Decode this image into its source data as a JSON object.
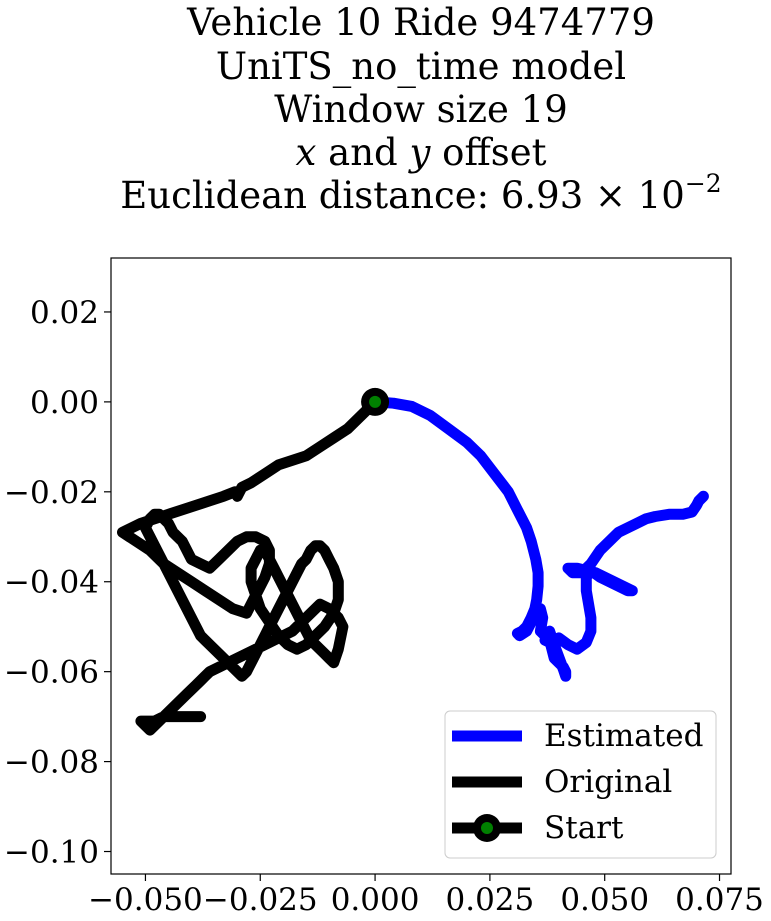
{
  "chart_data": {
    "type": "line",
    "title": [
      "Vehicle 10 Ride 9474779",
      "UniTS_no_time model",
      "Window size 19",
      "x and y offset",
      "Euclidean distance: 6.93 × 10⁻²"
    ],
    "title_parts": {
      "offset_x": "x",
      "offset_and": " and ",
      "offset_y": "y",
      "offset_rest": " offset",
      "dist_prefix": "Euclidean distance: 6.93 × 10",
      "dist_exp": "−2"
    },
    "xlabel": "",
    "ylabel": "",
    "xlim": [
      -0.0575,
      0.0775
    ],
    "ylim": [
      -0.105,
      0.032
    ],
    "xticks": [
      -0.05,
      -0.025,
      0.0,
      0.025,
      0.05,
      0.075
    ],
    "xtick_labels": [
      "−0.050",
      "−0.025",
      "0.000",
      "0.025",
      "0.050",
      "0.075"
    ],
    "yticks": [
      0.02,
      0.0,
      -0.02,
      -0.04,
      -0.06,
      -0.08,
      -0.1
    ],
    "ytick_labels": [
      "0.02",
      "0.00",
      "−0.02",
      "−0.04",
      "−0.06",
      "−0.08",
      "−0.10"
    ],
    "grid": false,
    "legend_position": "lower-right",
    "series": [
      {
        "name": "Estimated",
        "color": "#0000ff",
        "x": [
          0.0,
          0.004,
          0.008,
          0.012,
          0.016,
          0.02,
          0.023,
          0.026,
          0.029,
          0.031,
          0.033,
          0.034,
          0.035,
          0.0355,
          0.0355,
          0.0352,
          0.0348,
          0.034,
          0.0335,
          0.033,
          0.032,
          0.031,
          0.0315,
          0.033,
          0.034,
          0.035,
          0.036,
          0.0365,
          0.036,
          0.037,
          0.038,
          0.0385,
          0.039,
          0.04,
          0.041,
          0.0415,
          0.0415,
          0.041,
          0.039,
          0.038,
          0.037,
          0.038,
          0.04,
          0.042,
          0.044,
          0.046,
          0.047,
          0.047,
          0.0465,
          0.046,
          0.046,
          0.047,
          0.049,
          0.051,
          0.053,
          0.055,
          0.056,
          0.054,
          0.052,
          0.05,
          0.048,
          0.046,
          0.044,
          0.042,
          0.043,
          0.045,
          0.047,
          0.049,
          0.051,
          0.053,
          0.055,
          0.057,
          0.059,
          0.061,
          0.064,
          0.067,
          0.069,
          0.07,
          0.0705,
          0.0715
        ],
        "y": [
          0.0,
          -0.0003,
          -0.001,
          -0.003,
          -0.006,
          -0.009,
          -0.012,
          -0.016,
          -0.02,
          -0.024,
          -0.028,
          -0.031,
          -0.035,
          -0.038,
          -0.041,
          -0.044,
          -0.046,
          -0.048,
          -0.049,
          -0.05,
          -0.051,
          -0.0515,
          -0.052,
          -0.051,
          -0.049,
          -0.047,
          -0.046,
          -0.048,
          -0.051,
          -0.052,
          -0.053,
          -0.055,
          -0.057,
          -0.058,
          -0.059,
          -0.06,
          -0.061,
          -0.0595,
          -0.054,
          -0.051,
          -0.053,
          -0.0535,
          -0.0525,
          -0.054,
          -0.055,
          -0.0535,
          -0.051,
          -0.048,
          -0.045,
          -0.042,
          -0.039,
          -0.0375,
          -0.039,
          -0.04,
          -0.041,
          -0.042,
          -0.042,
          -0.041,
          -0.04,
          -0.039,
          -0.038,
          -0.0375,
          -0.037,
          -0.037,
          -0.038,
          -0.038,
          -0.036,
          -0.033,
          -0.031,
          -0.029,
          -0.028,
          -0.027,
          -0.026,
          -0.0255,
          -0.025,
          -0.025,
          -0.0245,
          -0.023,
          -0.022,
          -0.021
        ]
      },
      {
        "name": "Original",
        "color": "#000000",
        "x": [
          0.0,
          -0.002,
          -0.004,
          -0.006,
          -0.009,
          -0.012,
          -0.015,
          -0.018,
          -0.021,
          -0.024,
          -0.027,
          -0.029,
          -0.03,
          -0.0305,
          -0.033,
          -0.036,
          -0.039,
          -0.042,
          -0.045,
          -0.048,
          -0.051,
          -0.053,
          -0.055,
          -0.052,
          -0.049,
          -0.046,
          -0.043,
          -0.04,
          -0.037,
          -0.034,
          -0.031,
          -0.028,
          -0.026,
          -0.024,
          -0.023,
          -0.023,
          -0.024,
          -0.026,
          -0.028,
          -0.03,
          -0.032,
          -0.034,
          -0.036,
          -0.038,
          -0.04,
          -0.041,
          -0.042,
          -0.043,
          -0.044,
          -0.045,
          -0.046,
          -0.047,
          -0.048,
          -0.049,
          -0.05,
          -0.049,
          -0.048,
          -0.047,
          -0.046,
          -0.045,
          -0.044,
          -0.043,
          -0.042,
          -0.041,
          -0.04,
          -0.039,
          -0.038,
          -0.037,
          -0.036,
          -0.035,
          -0.034,
          -0.033,
          -0.032,
          -0.031,
          -0.03,
          -0.029,
          -0.028,
          -0.027,
          -0.026,
          -0.025,
          -0.024,
          -0.023,
          -0.022,
          -0.021,
          -0.02,
          -0.019,
          -0.018,
          -0.017,
          -0.016,
          -0.015,
          -0.014,
          -0.013,
          -0.012,
          -0.011,
          -0.01,
          -0.009,
          -0.008,
          -0.008,
          -0.009,
          -0.011,
          -0.013,
          -0.015,
          -0.017,
          -0.019,
          -0.021,
          -0.023,
          -0.025,
          -0.026,
          -0.027,
          -0.027,
          -0.026,
          -0.025,
          -0.024,
          -0.023,
          -0.022,
          -0.021,
          -0.02,
          -0.019,
          -0.018,
          -0.017,
          -0.016,
          -0.015,
          -0.014,
          -0.013,
          -0.012,
          -0.011,
          -0.01,
          -0.009,
          -0.008,
          -0.007,
          -0.008,
          -0.01,
          -0.012,
          -0.014,
          -0.016,
          -0.018,
          -0.02,
          -0.022,
          -0.024,
          -0.026,
          -0.028,
          -0.03,
          -0.032,
          -0.034,
          -0.036,
          -0.037,
          -0.038,
          -0.039,
          -0.04,
          -0.041,
          -0.042,
          -0.043,
          -0.044,
          -0.045,
          -0.046,
          -0.047,
          -0.048,
          -0.049,
          -0.05,
          -0.051,
          -0.05,
          -0.048,
          -0.046,
          -0.044,
          -0.042,
          -0.04,
          -0.038
        ],
        "y": [
          0.0,
          -0.002,
          -0.004,
          -0.006,
          -0.008,
          -0.01,
          -0.012,
          -0.013,
          -0.014,
          -0.016,
          -0.018,
          -0.019,
          -0.021,
          -0.02,
          -0.021,
          -0.022,
          -0.023,
          -0.024,
          -0.025,
          -0.026,
          -0.027,
          -0.028,
          -0.029,
          -0.031,
          -0.033,
          -0.036,
          -0.038,
          -0.04,
          -0.042,
          -0.044,
          -0.046,
          -0.047,
          -0.043,
          -0.039,
          -0.036,
          -0.033,
          -0.031,
          -0.03,
          -0.03,
          -0.031,
          -0.033,
          -0.035,
          -0.037,
          -0.036,
          -0.035,
          -0.033,
          -0.031,
          -0.03,
          -0.029,
          -0.027,
          -0.026,
          -0.025,
          -0.025,
          -0.026,
          -0.028,
          -0.03,
          -0.032,
          -0.034,
          -0.036,
          -0.038,
          -0.04,
          -0.042,
          -0.044,
          -0.046,
          -0.048,
          -0.05,
          -0.052,
          -0.053,
          -0.054,
          -0.055,
          -0.056,
          -0.057,
          -0.058,
          -0.059,
          -0.06,
          -0.061,
          -0.06,
          -0.058,
          -0.056,
          -0.054,
          -0.052,
          -0.05,
          -0.048,
          -0.046,
          -0.044,
          -0.042,
          -0.04,
          -0.038,
          -0.036,
          -0.035,
          -0.033,
          -0.032,
          -0.032,
          -0.033,
          -0.035,
          -0.037,
          -0.04,
          -0.044,
          -0.047,
          -0.05,
          -0.052,
          -0.054,
          -0.055,
          -0.054,
          -0.052,
          -0.049,
          -0.046,
          -0.043,
          -0.04,
          -0.037,
          -0.035,
          -0.033,
          -0.033,
          -0.035,
          -0.037,
          -0.039,
          -0.041,
          -0.043,
          -0.045,
          -0.047,
          -0.049,
          -0.051,
          -0.053,
          -0.054,
          -0.055,
          -0.056,
          -0.057,
          -0.058,
          -0.055,
          -0.05,
          -0.048,
          -0.046,
          -0.045,
          -0.047,
          -0.049,
          -0.051,
          -0.052,
          -0.053,
          -0.054,
          -0.055,
          -0.056,
          -0.057,
          -0.058,
          -0.059,
          -0.06,
          -0.061,
          -0.062,
          -0.063,
          -0.064,
          -0.065,
          -0.066,
          -0.067,
          -0.068,
          -0.069,
          -0.07,
          -0.071,
          -0.072,
          -0.073,
          -0.072,
          -0.071,
          -0.071,
          -0.071,
          -0.07,
          -0.07,
          -0.07,
          -0.07,
          -0.07
        ]
      }
    ],
    "start_marker": {
      "name": "Start",
      "x": 0.0,
      "y": 0.0,
      "edge_color": "#000000",
      "face_color": "#008000"
    },
    "legend": [
      "Estimated",
      "Original",
      "Start"
    ]
  }
}
